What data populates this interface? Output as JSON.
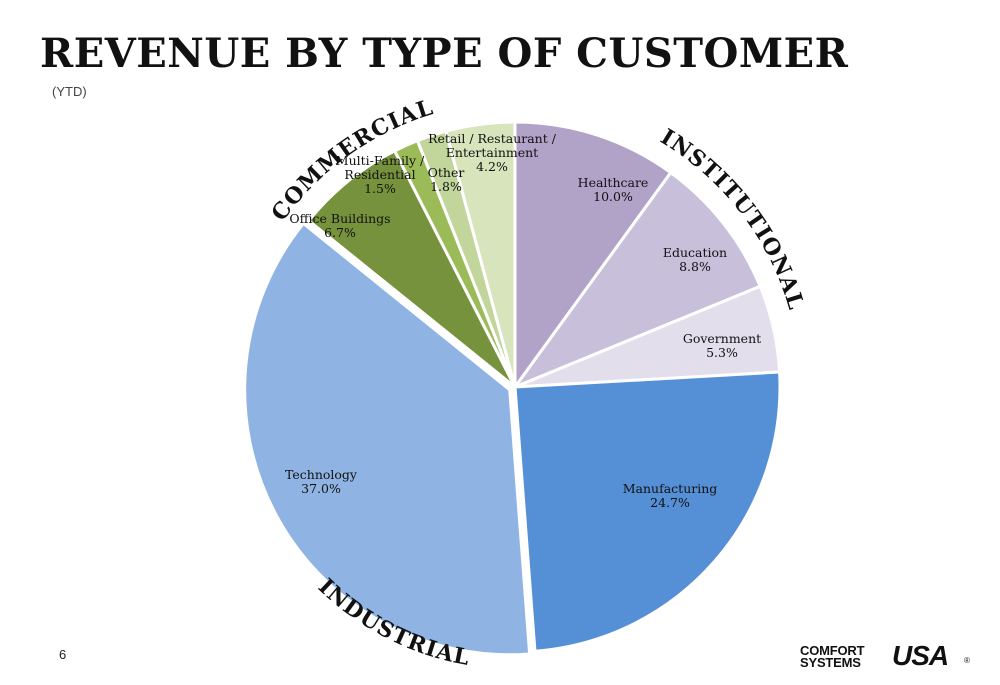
{
  "slide": {
    "title": "REVENUE BY TYPE OF CUSTOMER",
    "subtitle": "(YTD)",
    "page_number": "6"
  },
  "logo": {
    "line1": "COMFORT",
    "line2": "SYSTEMS",
    "mark": "USA",
    "registered": "®"
  },
  "chart_data": {
    "type": "pie",
    "title": "REVENUE BY TYPE OF CUSTOMER",
    "subtitle": "(YTD)",
    "slices": [
      {
        "label": "Healthcare",
        "value": 10.0,
        "value_label": "10.0%",
        "group": "INSTITUTIONAL",
        "color": "#B1A2C8"
      },
      {
        "label": "Education",
        "value": 8.8,
        "value_label": "8.8%",
        "group": "INSTITUTIONAL",
        "color": "#C8BFDB"
      },
      {
        "label": "Government",
        "value": 5.3,
        "value_label": "5.3%",
        "group": "INSTITUTIONAL",
        "color": "#E3DEEC"
      },
      {
        "label": "Manufacturing",
        "value": 24.7,
        "value_label": "24.7%",
        "group": "INDUSTRIAL",
        "color": "#558FD5"
      },
      {
        "label": "Technology",
        "value": 37.0,
        "value_label": "37.0%",
        "group": "INDUSTRIAL",
        "color": "#8FB4E3"
      },
      {
        "label": "Office Buildings",
        "value": 6.7,
        "value_label": "6.7%",
        "group": "COMMERCIAL",
        "color": "#77923C"
      },
      {
        "label": "Multi-Family / Residential",
        "value": 1.5,
        "value_label": "1.5%",
        "group": "COMMERCIAL",
        "color": "#9BBB59"
      },
      {
        "label": "Other",
        "value": 1.8,
        "value_label": "1.8%",
        "group": "COMMERCIAL",
        "color": "#C2D69B"
      },
      {
        "label": "Retail / Restaurant / Entertainment",
        "value": 4.2,
        "value_label": "4.2%",
        "group": "COMMERCIAL",
        "color": "#D8E4BC"
      }
    ],
    "groups": [
      "INSTITUTIONAL",
      "INDUSTRIAL",
      "COMMERCIAL"
    ],
    "legend": "none"
  }
}
